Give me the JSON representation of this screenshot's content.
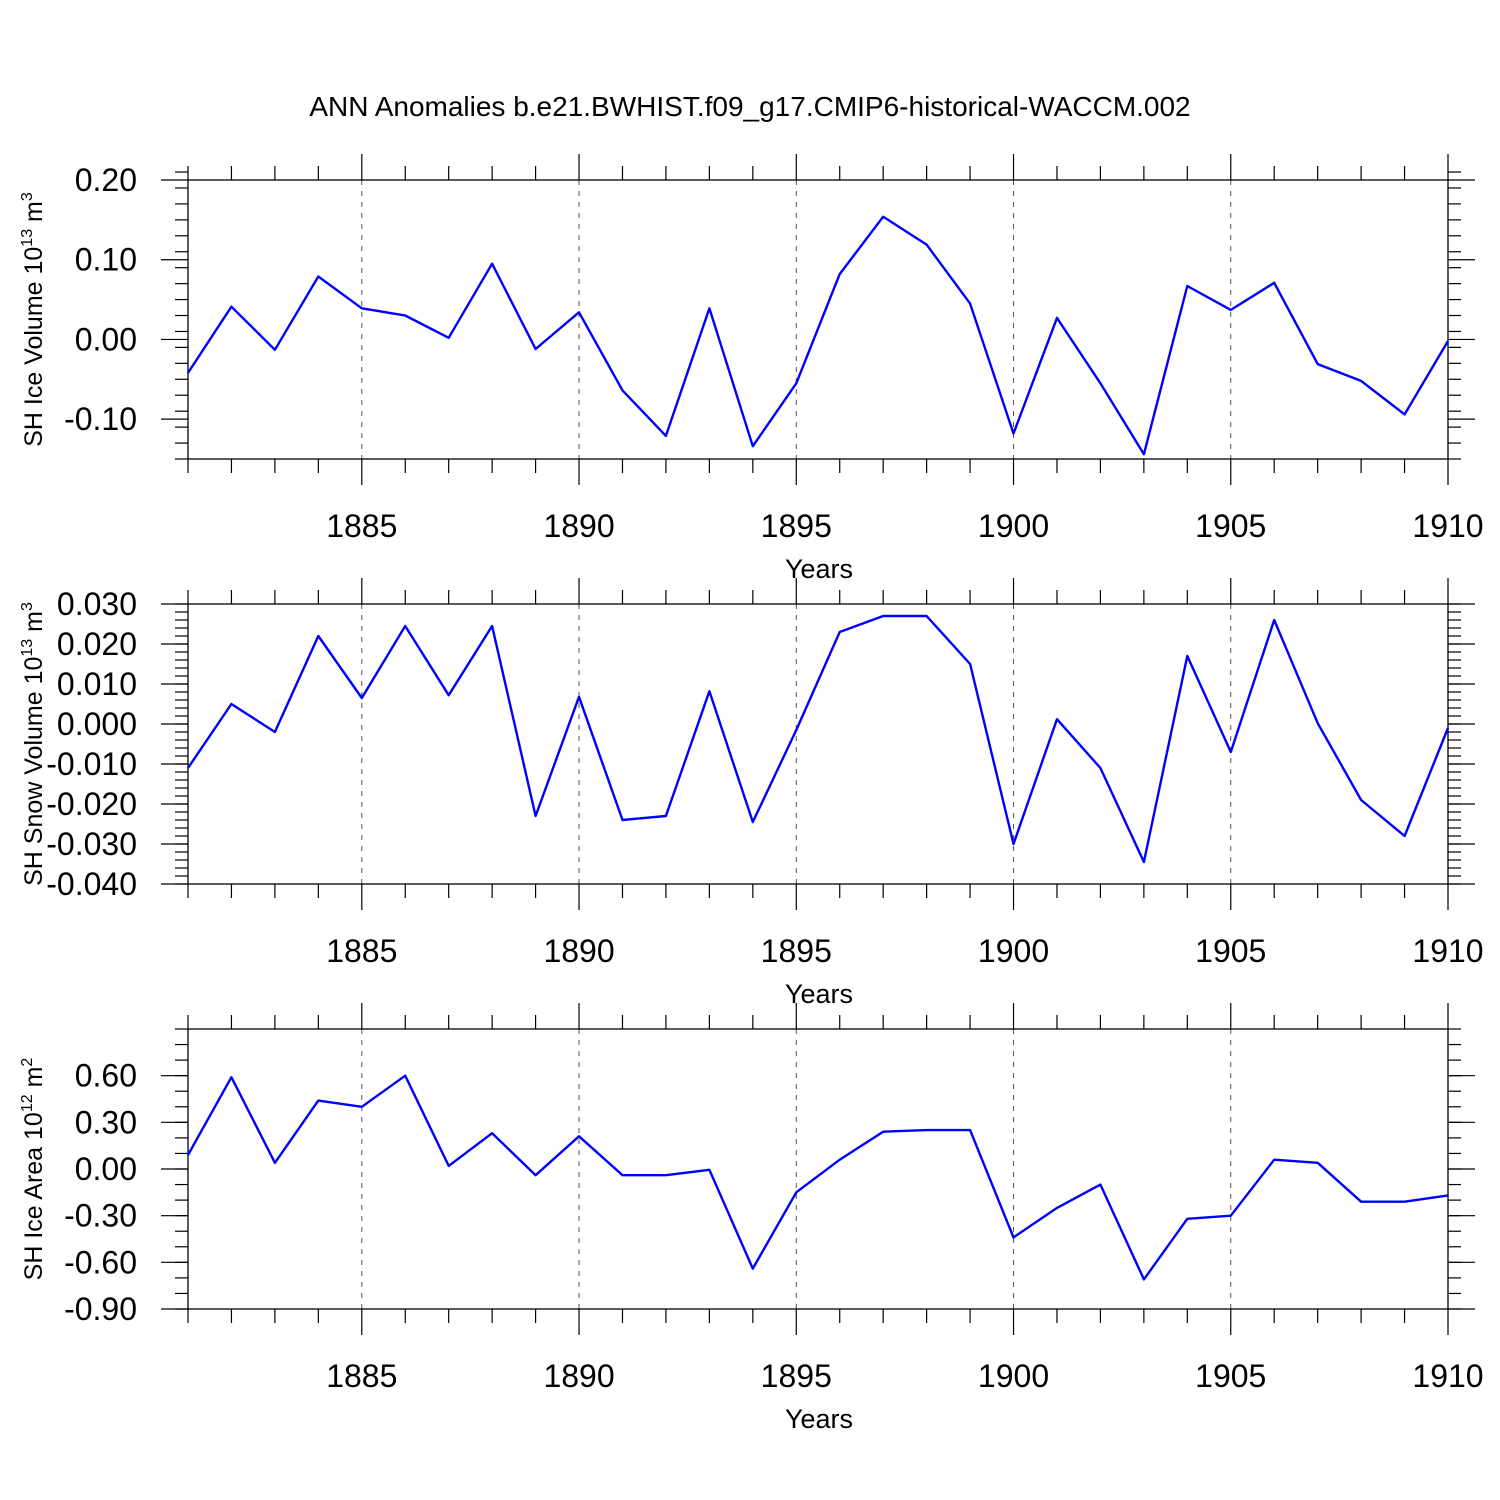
{
  "figure_title": "ANN Anomalies b.e21.BWHIST.f09_g17.CMIP6-historical-WACCM.002",
  "chart_data": [
    {
      "type": "line",
      "title": "ANN Anomalies b.e21.BWHIST.f09_g17.CMIP6-historical-WACCM.002",
      "ylabel": {
        "text": "SH Ice Volume 10",
        "sup": "13",
        "unit": " m",
        "unit_sup": "3"
      },
      "xlabel": "Years",
      "xlim": [
        1881,
        1910
      ],
      "ylim": [
        -0.15,
        0.2
      ],
      "yticks": [
        -0.1,
        0.0,
        0.1,
        0.2
      ],
      "ytick_labels": [
        "-0.10",
        "0.00",
        "0.10",
        "0.20"
      ],
      "yminor_step": 0.02,
      "xticks": [
        1885,
        1890,
        1895,
        1900,
        1905,
        1910
      ],
      "xtick_labels": [
        "1885",
        "1890",
        "1895",
        "1900",
        "1905",
        "1910"
      ],
      "series": [
        {
          "name": "SH Ice Volume",
          "color": "#0000ff",
          "x": [
            1881,
            1882,
            1883,
            1884,
            1885,
            1886,
            1887,
            1888,
            1889,
            1890,
            1891,
            1892,
            1893,
            1894,
            1895,
            1896,
            1897,
            1898,
            1899,
            1900,
            1901,
            1902,
            1903,
            1904,
            1905,
            1906,
            1907,
            1908,
            1909,
            1910
          ],
          "values": [
            -0.042,
            0.041,
            -0.013,
            0.079,
            0.039,
            0.03,
            0.002,
            0.095,
            -0.012,
            0.034,
            -0.064,
            -0.121,
            0.039,
            -0.134,
            -0.055,
            0.082,
            0.154,
            0.119,
            0.045,
            -0.118,
            0.027,
            -0.055,
            -0.144,
            0.067,
            0.037,
            0.071,
            -0.031,
            -0.052,
            -0.094,
            -0.002
          ]
        }
      ]
    },
    {
      "type": "line",
      "ylabel": {
        "text": "SH Snow Volume 10",
        "sup": "13",
        "unit": " m",
        "unit_sup": "3"
      },
      "xlabel": "Years",
      "xlim": [
        1881,
        1910
      ],
      "ylim": [
        -0.04,
        0.03
      ],
      "yticks": [
        -0.04,
        -0.03,
        -0.02,
        -0.01,
        0.0,
        0.01,
        0.02,
        0.03
      ],
      "ytick_labels": [
        "-0.040",
        "-0.030",
        "-0.020",
        "-0.010",
        "0.000",
        "0.010",
        "0.020",
        "0.030"
      ],
      "yminor_step": 0.002,
      "xticks": [
        1885,
        1890,
        1895,
        1900,
        1905,
        1910
      ],
      "xtick_labels": [
        "1885",
        "1890",
        "1895",
        "1900",
        "1905",
        "1910"
      ],
      "series": [
        {
          "name": "SH Snow Volume",
          "color": "#0000ff",
          "x": [
            1881,
            1882,
            1883,
            1884,
            1885,
            1886,
            1887,
            1888,
            1889,
            1890,
            1891,
            1892,
            1893,
            1894,
            1895,
            1896,
            1897,
            1898,
            1899,
            1900,
            1901,
            1902,
            1903,
            1904,
            1905,
            1906,
            1907,
            1908,
            1909,
            1910
          ],
          "values": [
            -0.011,
            0.005,
            -0.002,
            0.022,
            0.0065,
            0.0245,
            0.0072,
            0.0245,
            -0.023,
            0.0068,
            -0.024,
            -0.023,
            0.0082,
            -0.0245,
            -0.0015,
            0.023,
            0.027,
            0.027,
            0.015,
            -0.03,
            0.0012,
            -0.011,
            -0.0345,
            0.017,
            -0.007,
            0.026,
            0.0002,
            -0.019,
            -0.028,
            -0.001
          ]
        }
      ]
    },
    {
      "type": "line",
      "ylabel": {
        "text": "SH Ice Area 10",
        "sup": "12",
        "unit": " m",
        "unit_sup": "2"
      },
      "xlabel": "Years",
      "xlim": [
        1881,
        1910
      ],
      "ylim": [
        -0.9,
        0.9
      ],
      "yticks": [
        -0.9,
        -0.6,
        -0.3,
        0.0,
        0.3,
        0.6
      ],
      "ytick_labels": [
        "-0.90",
        "-0.60",
        "-0.30",
        "0.00",
        "0.30",
        "0.60"
      ],
      "yminor_step": 0.1,
      "xticks": [
        1885,
        1890,
        1895,
        1900,
        1905,
        1910
      ],
      "xtick_labels": [
        "1885",
        "1890",
        "1895",
        "1900",
        "1905",
        "1910"
      ],
      "series": [
        {
          "name": "SH Ice Area",
          "color": "#0000ff",
          "x": [
            1881,
            1882,
            1883,
            1884,
            1885,
            1886,
            1887,
            1888,
            1889,
            1890,
            1891,
            1892,
            1893,
            1894,
            1895,
            1896,
            1897,
            1898,
            1899,
            1900,
            1901,
            1902,
            1903,
            1904,
            1905,
            1906,
            1907,
            1908,
            1909,
            1910
          ],
          "values": [
            0.09,
            0.59,
            0.04,
            0.44,
            0.4,
            0.6,
            0.02,
            0.23,
            -0.04,
            0.21,
            -0.04,
            -0.04,
            -0.005,
            -0.64,
            -0.15,
            0.06,
            0.24,
            0.25,
            0.25,
            -0.44,
            -0.25,
            -0.1,
            -0.71,
            -0.32,
            -0.3,
            0.06,
            0.04,
            -0.21,
            -0.21,
            -0.17
          ]
        }
      ]
    }
  ]
}
